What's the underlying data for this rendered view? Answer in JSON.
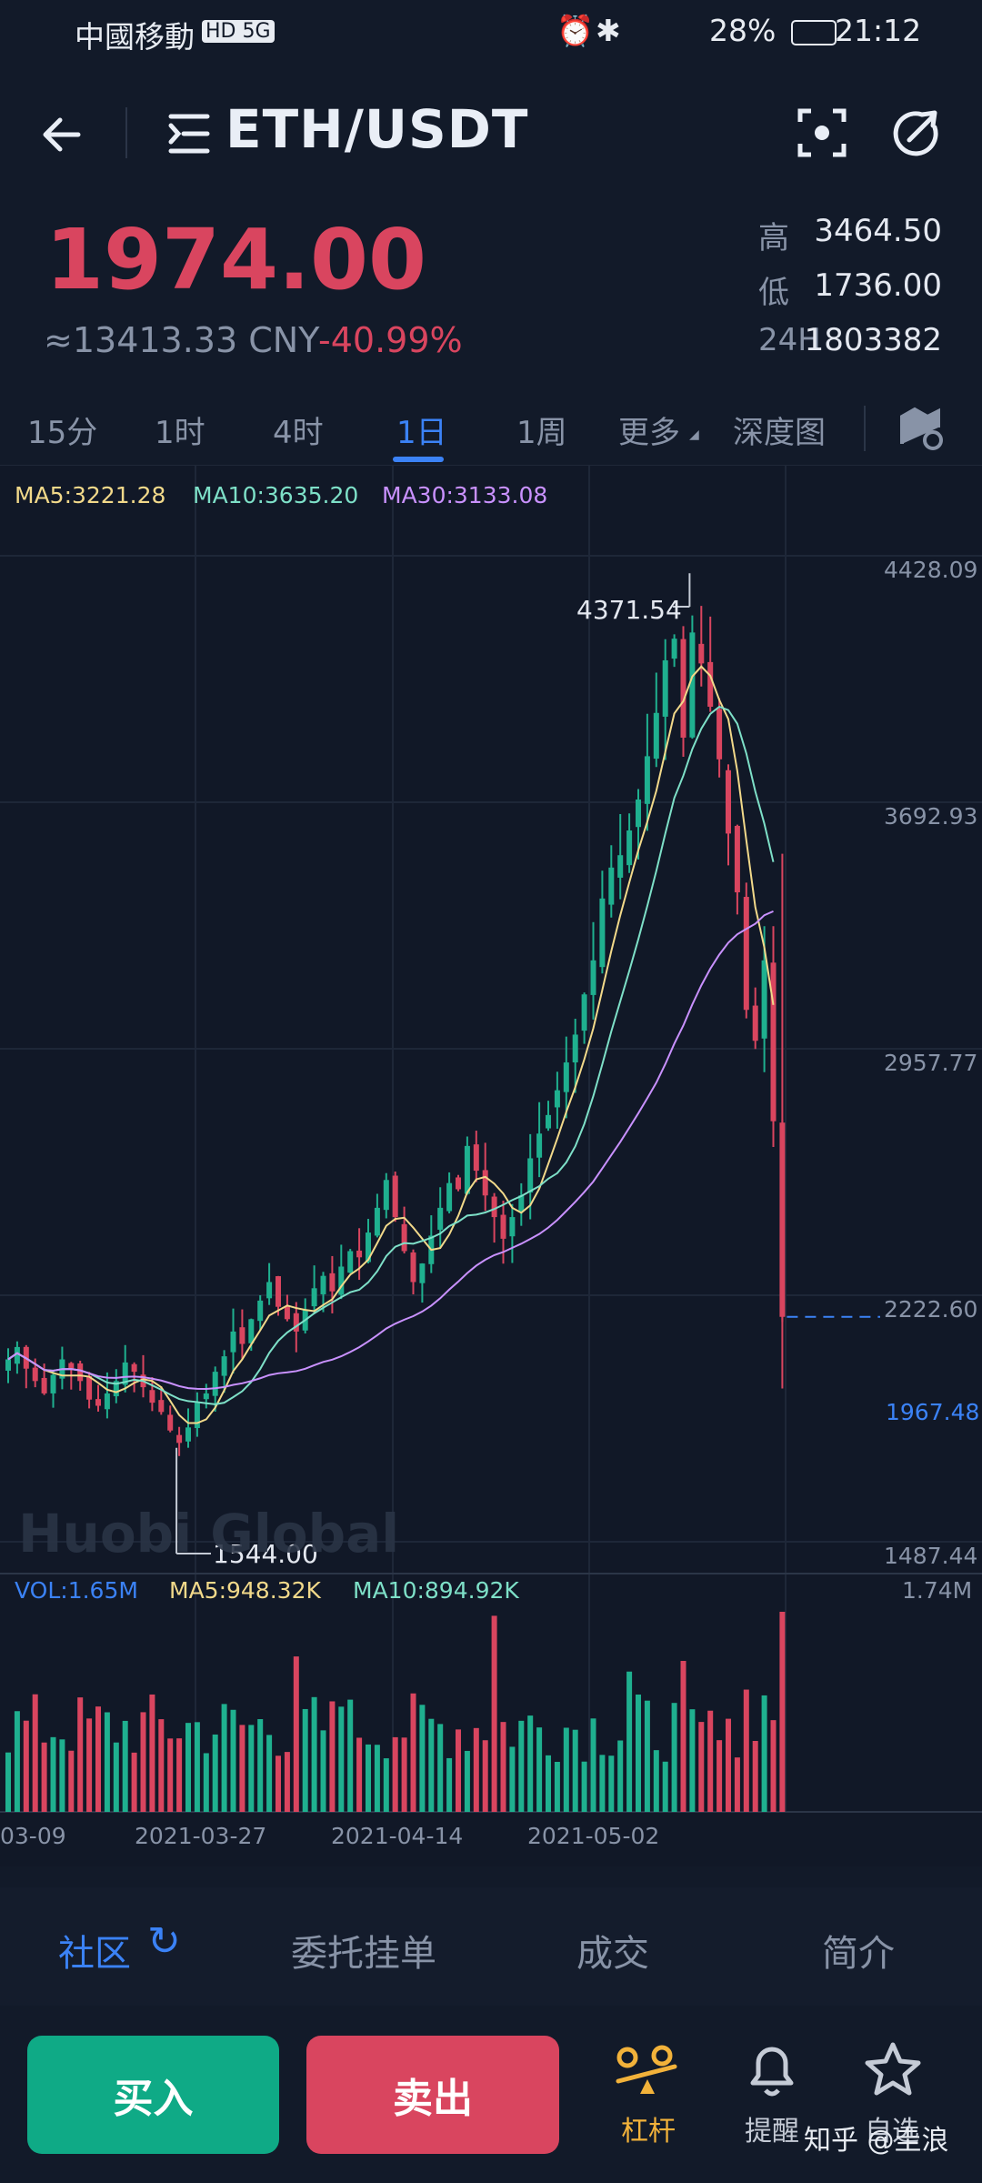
{
  "status": {
    "carrier": "中國移動",
    "net": "HD 5G",
    "battery": "28%",
    "time": "21:12"
  },
  "header": {
    "title": "ETH/USDT"
  },
  "ticker": {
    "price": "1974.00",
    "cny": "≈13413.33 CNY",
    "change": "-40.99%",
    "high_label": "高",
    "high": "3464.50",
    "low_label": "低",
    "low": "1736.00",
    "vol_label": "24H",
    "vol": "1803382"
  },
  "tabs": [
    "15分",
    "1时",
    "4时",
    "1日",
    "1周",
    "更多",
    "深度图"
  ],
  "chart": {
    "ma5": "MA5:3221.28",
    "ma10": "MA10:3635.20",
    "ma30": "MA30:3133.08",
    "y_ticks": [
      "4428.09",
      "3692.93",
      "2957.77",
      "2222.60",
      "1487.44"
    ],
    "last_price": "1967.48",
    "max_label": "4371.54",
    "min_label": "1544.00",
    "watermark": "Huobi Global",
    "vol": "VOL:1.65M",
    "vol_ma5": "MA5:948.32K",
    "vol_ma10": "MA10:894.92K",
    "vol_max": "1.74M",
    "x_ticks": [
      "03-09",
      "2021-03-27",
      "2021-04-14",
      "2021-05-02"
    ],
    "colors": {
      "up": "#1fb08f",
      "down": "#d9455f",
      "ma5": "#f2d98a",
      "ma10": "#7ee0c8",
      "ma30": "#c991ff"
    }
  },
  "chart_data": {
    "type": "candlestick",
    "y_range": [
      1487.44,
      4428.09
    ],
    "x_labels": [
      "03-09",
      "2021-03-27",
      "2021-04-14",
      "2021-05-02"
    ],
    "closes": [
      1830,
      1870,
      1800,
      1760,
      1720,
      1780,
      1830,
      1800,
      1760,
      1700,
      1680,
      1720,
      1760,
      1820,
      1790,
      1740,
      1690,
      1660,
      1600,
      1560,
      1610,
      1690,
      1720,
      1790,
      1840,
      1920,
      1880,
      1960,
      2020,
      2080,
      2000,
      1960,
      1920,
      1990,
      2060,
      2100,
      2050,
      2130,
      2180,
      2160,
      2240,
      2320,
      2410,
      2290,
      2180,
      2080,
      2140,
      2230,
      2320,
      2400,
      2380,
      2520,
      2440,
      2360,
      2290,
      2220,
      2290,
      2360,
      2480,
      2560,
      2620,
      2700,
      2790,
      2880,
      3010,
      3120,
      3320,
      3420,
      3460,
      3540,
      3640,
      3780,
      3920,
      4090,
      4160,
      3840,
      4180,
      4080,
      3940,
      3770,
      3530,
      3340,
      2960,
      2860,
      3120,
      2600,
      1967.48
    ],
    "max": "4371.54",
    "min": "1544.00",
    "last": "1967.48"
  },
  "bottom": {
    "tabs": [
      "社区",
      "委托挂单",
      "成交",
      "简介"
    ]
  },
  "actions": {
    "buy": "买入",
    "sell": "卖出",
    "margin": "杠杆",
    "alert": "提醒",
    "fav": "自选",
    "watermark": "知乎 @圭浪"
  }
}
